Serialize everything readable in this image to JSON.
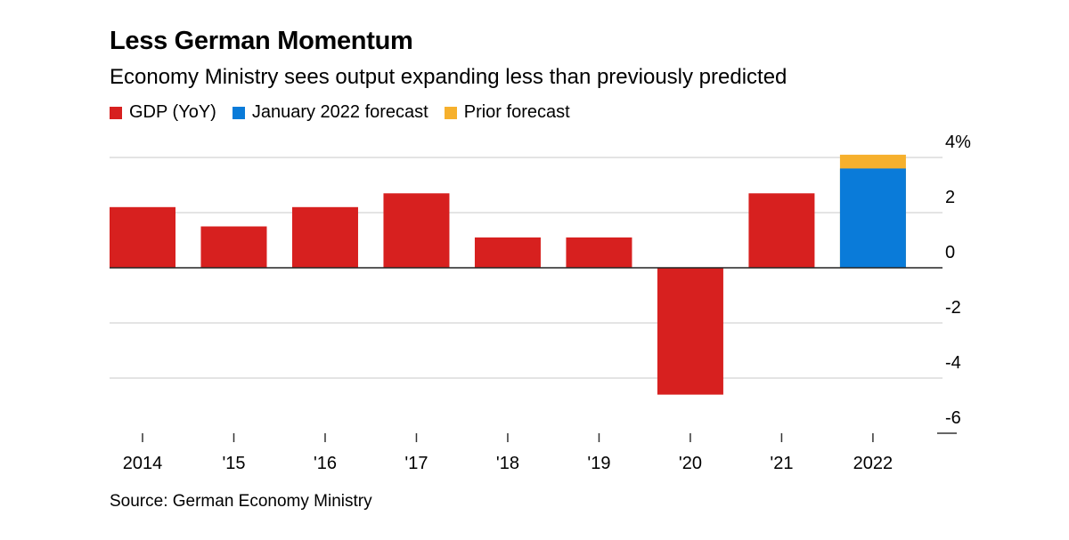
{
  "chart_data": {
    "type": "bar",
    "title": "Less German Momentum",
    "subtitle": "Economy Ministry sees output expanding less than previously predicted",
    "categories": [
      "2014",
      "'15",
      "'16",
      "'17",
      "'18",
      "'19",
      "'20",
      "'21",
      "2022"
    ],
    "series": [
      {
        "name": "GDP (YoY)",
        "color": "#d7201f",
        "values": [
          2.2,
          1.5,
          2.2,
          2.7,
          1.1,
          1.1,
          -4.6,
          2.7,
          null
        ]
      },
      {
        "name": "January 2022 forecast",
        "color": "#0a7bd9",
        "values": [
          null,
          null,
          null,
          null,
          null,
          null,
          null,
          null,
          3.6
        ]
      },
      {
        "name": "Prior forecast",
        "color": "#f6b02d",
        "values": [
          null,
          null,
          null,
          null,
          null,
          null,
          null,
          null,
          4.1
        ]
      }
    ],
    "y_ticks": [
      {
        "value": 4,
        "label": "4%"
      },
      {
        "value": 2,
        "label": "2"
      },
      {
        "value": 0,
        "label": "0"
      },
      {
        "value": -2,
        "label": "-2"
      },
      {
        "value": -4,
        "label": "-4"
      },
      {
        "value": -6,
        "label": "-6"
      }
    ],
    "ylim": [
      -6,
      4
    ],
    "legend_position": "top-left",
    "grid": true,
    "source": "Source: German Economy Ministry"
  }
}
